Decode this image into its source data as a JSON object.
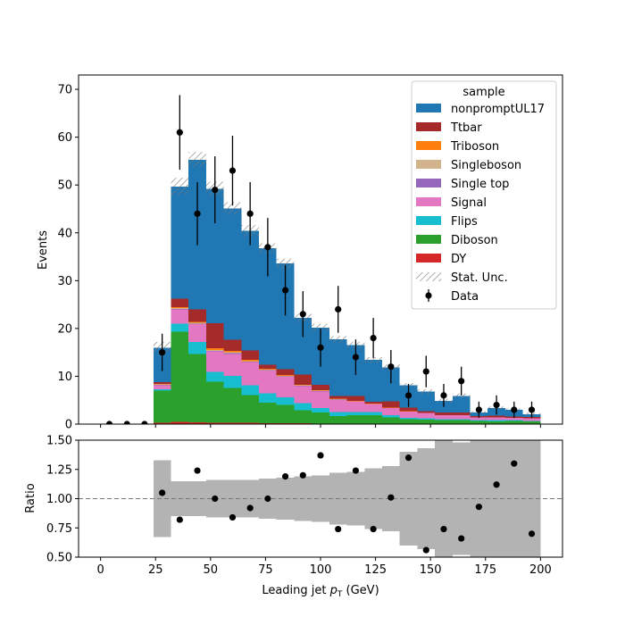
{
  "chart_data": [
    {
      "type": "bar",
      "subtype": "stacked-step-histogram",
      "xlabel": "Leading jet  p_T (GeV)",
      "xlabel_main": "Leading jet  ",
      "xlabel_sym": "p",
      "xlabel_sub": "T",
      "xlabel_unit": " (GeV)",
      "ylabel": "Events",
      "xlim": [
        -10,
        210
      ],
      "ylim": [
        0,
        73
      ],
      "xticks": [
        0,
        25,
        50,
        75,
        100,
        125,
        150,
        175,
        200
      ],
      "yticks": [
        0,
        10,
        20,
        30,
        40,
        50,
        60,
        70
      ],
      "bin_edges": [
        24,
        32,
        40,
        48,
        56,
        64,
        72,
        80,
        88,
        96,
        104,
        112,
        120,
        128,
        136,
        144,
        152,
        160,
        168,
        176,
        184,
        192,
        200
      ],
      "legend_title": "sample",
      "legend_position": "top-right",
      "series": [
        {
          "name": "DY",
          "color": "#d62728",
          "values": [
            0.3,
            0.5,
            0.4,
            0.3,
            0.3,
            0.3,
            0.2,
            0.2,
            0.2,
            0.1,
            0.1,
            0.1,
            0.1,
            0.1,
            0.1,
            0.1,
            0.1,
            0,
            0,
            0,
            0,
            0
          ]
        },
        {
          "name": "Diboson",
          "color": "#2ca02c",
          "values": [
            6.7,
            18.8,
            14.3,
            8.6,
            7.3,
            5.8,
            4.3,
            3.8,
            2.7,
            2.3,
            1.6,
            1.8,
            1.8,
            1.3,
            0.9,
            0.8,
            0.7,
            0.8,
            0.7,
            0.6,
            0.7,
            0.6
          ]
        },
        {
          "name": "Flips",
          "color": "#17becf",
          "values": [
            0.3,
            1.7,
            2.5,
            2.0,
            2.5,
            2.0,
            1.9,
            1.6,
            1.5,
            1.0,
            0.8,
            0.6,
            0.6,
            0.5,
            0.3,
            0.3,
            0.2,
            0.2,
            0.1,
            0.2,
            0.1,
            0.1
          ]
        },
        {
          "name": "Signal",
          "color": "#e377c2",
          "values": [
            0.8,
            3.0,
            3.7,
            4.3,
            4.6,
            4.9,
            4.8,
            4.3,
            3.5,
            3.4,
            2.5,
            2.3,
            1.7,
            1.5,
            1.3,
            1.1,
            0.9,
            0.9,
            0.6,
            0.6,
            0.5,
            0.5
          ]
        },
        {
          "name": "Single top",
          "color": "#9467bd",
          "values": [
            0.1,
            0.1,
            0.1,
            0.1,
            0.1,
            0.1,
            0.1,
            0.1,
            0.1,
            0.1,
            0.1,
            0,
            0,
            0,
            0,
            0,
            0,
            0,
            0,
            0,
            0,
            0
          ]
        },
        {
          "name": "Singleboson",
          "color": "#d2b48c",
          "values": [
            0.1,
            0.2,
            0.2,
            0.2,
            0.2,
            0.1,
            0.1,
            0.1,
            0.1,
            0.1,
            0.1,
            0,
            0,
            0,
            0,
            0,
            0,
            0,
            0,
            0,
            0,
            0
          ]
        },
        {
          "name": "Triboson",
          "color": "#ff7f0e",
          "values": [
            0.1,
            0.2,
            0.2,
            0.4,
            0.3,
            0.2,
            0.2,
            0.2,
            0.1,
            0.1,
            0.1,
            0.1,
            0.1,
            0.1,
            0.1,
            0,
            0,
            0,
            0,
            0,
            0,
            0
          ]
        },
        {
          "name": "Ttbar",
          "color": "#a52a2a",
          "values": [
            0.4,
            1.7,
            2.6,
            5.2,
            2.3,
            2.0,
            0.8,
            1.2,
            2.2,
            1.1,
            0.6,
            1.0,
            0.4,
            1.3,
            0.8,
            0.4,
            0.5,
            0.5,
            0.3,
            0.4,
            0.3,
            0.3
          ]
        },
        {
          "name": "nonpromptUL17",
          "color": "#1f77b4",
          "values": [
            7.2,
            23.5,
            31.3,
            28.1,
            27.5,
            25.0,
            24.4,
            22.1,
            11.8,
            12.0,
            11.8,
            10.6,
            8.7,
            7.1,
            4.6,
            4.1,
            2.5,
            3.5,
            0.7,
            1.6,
            1.4,
            0.6
          ]
        }
      ],
      "stat_unc": {
        "name": "Stat. Unc.",
        "values": [
          1.2,
          1.8,
          1.6,
          1.5,
          1.3,
          1.2,
          1.0,
          1.0,
          0.9,
          0.8,
          0.7,
          0.7,
          0.6,
          0.6,
          0.5,
          0.5,
          0.4,
          0.5,
          0.3,
          0.3,
          0.3,
          0.3
        ]
      },
      "data_points": {
        "name": "Data",
        "x": [
          4,
          12,
          20,
          28,
          36,
          44,
          52,
          60,
          68,
          76,
          84,
          92,
          100,
          108,
          116,
          124,
          132,
          140,
          148,
          156,
          164,
          172,
          180,
          188,
          196
        ],
        "y": [
          0,
          0,
          0,
          15,
          61,
          44,
          49,
          53,
          44,
          37,
          28,
          23,
          16,
          24,
          14,
          18,
          12,
          6,
          11,
          6,
          9,
          3,
          4,
          3,
          3
        ],
        "yerr": [
          0,
          0,
          0,
          3.9,
          7.8,
          6.6,
          7.0,
          7.3,
          6.6,
          6.1,
          5.3,
          4.8,
          4.0,
          4.9,
          3.7,
          4.2,
          3.5,
          2.4,
          3.3,
          2.4,
          3.0,
          1.7,
          2.0,
          1.7,
          1.7
        ]
      }
    },
    {
      "type": "scatter",
      "subtype": "ratio-panel",
      "xlabel": "Leading jet  p_T (GeV)",
      "ylabel": "Ratio",
      "xlim": [
        -10,
        210
      ],
      "ylim": [
        0.5,
        1.5
      ],
      "yticks": [
        "0.50",
        "0.75",
        "1.00",
        "1.25",
        "1.50"
      ],
      "reference_line": 1.0,
      "x": [
        28,
        36,
        44,
        52,
        60,
        68,
        76,
        84,
        92,
        100,
        108,
        116,
        124,
        132,
        140,
        148,
        156,
        164,
        172,
        180,
        188,
        196
      ],
      "y": [
        1.05,
        0.82,
        1.24,
        1.0,
        0.84,
        0.92,
        1.0,
        1.19,
        1.2,
        1.37,
        0.74,
        1.24,
        0.74,
        1.01,
        1.35,
        0.56,
        0.74,
        0.66,
        0.93,
        1.12,
        1.3,
        0.7
      ],
      "band_halfwidth": [
        0.33,
        0.15,
        0.15,
        0.16,
        0.16,
        0.16,
        0.17,
        0.18,
        0.19,
        0.2,
        0.22,
        0.23,
        0.26,
        0.28,
        0.4,
        0.43,
        0.5,
        0.48,
        0.9,
        0.9,
        0.9,
        0.9
      ]
    }
  ]
}
